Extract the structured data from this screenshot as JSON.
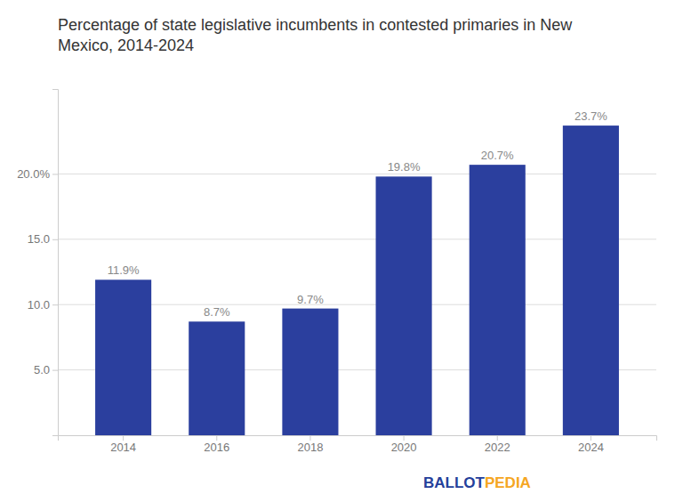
{
  "chart_data": {
    "type": "bar",
    "title": "Percentage of state legislative incumbents in contested primaries in New\nMexico, 2014-2024",
    "categories": [
      "2014",
      "2016",
      "2018",
      "2020",
      "2022",
      "2024"
    ],
    "values": [
      11.9,
      8.7,
      9.7,
      19.8,
      20.7,
      23.7
    ],
    "value_labels": [
      "11.9%",
      "8.7%",
      "9.7%",
      "19.8%",
      "20.7%",
      "23.7%"
    ],
    "data_labels": true,
    "color": "#2B3F9E",
    "ylim": [
      0,
      26.5
    ],
    "yticks": [
      {
        "value": 5,
        "label": "5.0"
      },
      {
        "value": 10,
        "label": "10.0"
      },
      {
        "value": 15,
        "label": "15.0"
      },
      {
        "value": 20,
        "label": "20.0%"
      }
    ],
    "grid": true,
    "annotations": [
      {
        "text": "BALLOT",
        "color": "#243F9B"
      },
      {
        "text": "PEDIA",
        "color": "#F5A623"
      }
    ]
  }
}
